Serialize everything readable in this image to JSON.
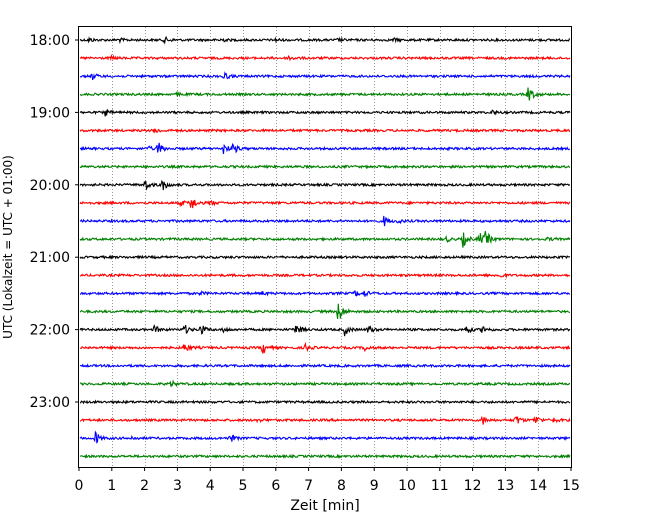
{
  "chart_data": {
    "type": "line",
    "title": "",
    "xlabel": "Zeit  [min]",
    "ylabel": "UTC (Lokalzeit = UTC + 01:00)",
    "xlim": [
      0,
      15
    ],
    "xticks": [
      "0",
      "1",
      "2",
      "3",
      "4",
      "5",
      "6",
      "7",
      "8",
      "9",
      "10",
      "11",
      "12",
      "13",
      "14",
      "15"
    ],
    "yticks": [
      {
        "label": "18:00",
        "trace_index": 0
      },
      {
        "label": "19:00",
        "trace_index": 4
      },
      {
        "label": "20:00",
        "trace_index": 8
      },
      {
        "label": "21:00",
        "trace_index": 12
      },
      {
        "label": "22:00",
        "trace_index": 16
      },
      {
        "label": "23:00",
        "trace_index": 20
      }
    ],
    "grid": "vertical dotted at each minute",
    "color_cycle": [
      "#000000",
      "#ff0000",
      "#0000ff",
      "#008000"
    ],
    "traces": [
      {
        "start": "18:00",
        "color": "#000000",
        "events": [
          [
            2.6,
            0.3
          ],
          [
            4.3,
            0.25
          ],
          [
            0.3,
            0.2
          ],
          [
            1.2,
            0.2
          ],
          [
            6.0,
            0.15
          ],
          [
            7.9,
            0.15
          ],
          [
            9.6,
            0.15
          ]
        ]
      },
      {
        "start": "18:15",
        "color": "#ff0000",
        "events": [
          [
            6.4,
            0.25
          ],
          [
            1.0,
            0.15
          ]
        ]
      },
      {
        "start": "18:30",
        "color": "#0000ff",
        "events": [
          [
            0.4,
            0.35
          ],
          [
            4.4,
            0.45
          ]
        ]
      },
      {
        "start": "18:45",
        "color": "#008000",
        "events": [
          [
            13.7,
            0.9
          ],
          [
            3.0,
            0.15
          ]
        ]
      },
      {
        "start": "19:00",
        "color": "#000000",
        "events": [
          [
            0.8,
            0.35
          ],
          [
            12.6,
            0.2
          ]
        ]
      },
      {
        "start": "19:15",
        "color": "#ff0000",
        "events": [
          [
            2.3,
            0.3
          ]
        ]
      },
      {
        "start": "19:30",
        "color": "#0000ff",
        "events": [
          [
            2.4,
            0.8
          ],
          [
            4.4,
            0.55
          ],
          [
            4.7,
            0.5
          ],
          [
            2.1,
            0.2
          ]
        ]
      },
      {
        "start": "19:45",
        "color": "#008000",
        "events": []
      },
      {
        "start": "20:00",
        "color": "#000000",
        "events": [
          [
            2.0,
            0.6
          ],
          [
            2.5,
            0.9
          ]
        ]
      },
      {
        "start": "20:15",
        "color": "#ff0000",
        "events": [
          [
            3.4,
            0.95
          ],
          [
            4.0,
            0.25
          ],
          [
            3.1,
            0.25
          ]
        ]
      },
      {
        "start": "20:30",
        "color": "#0000ff",
        "events": [
          [
            9.3,
            0.5
          ],
          [
            9.7,
            0.2
          ]
        ]
      },
      {
        "start": "20:45",
        "color": "#008000",
        "events": [
          [
            11.7,
            0.8
          ],
          [
            12.2,
            0.7
          ],
          [
            12.4,
            0.75
          ],
          [
            11.2,
            0.25
          ],
          [
            14.3,
            0.15
          ]
        ]
      },
      {
        "start": "21:00",
        "color": "#000000",
        "events": []
      },
      {
        "start": "21:15",
        "color": "#ff0000",
        "events": [
          [
            12.8,
            0.3
          ]
        ]
      },
      {
        "start": "21:30",
        "color": "#0000ff",
        "events": [
          [
            8.4,
            0.3
          ],
          [
            8.7,
            0.3
          ],
          [
            3.7,
            0.15
          ],
          [
            5.6,
            0.15
          ]
        ]
      },
      {
        "start": "21:45",
        "color": "#008000",
        "events": [
          [
            7.9,
            1.4
          ]
        ]
      },
      {
        "start": "22:00",
        "color": "#000000",
        "events": [
          [
            2.3,
            0.4
          ],
          [
            3.2,
            0.55
          ],
          [
            3.7,
            0.6
          ],
          [
            6.6,
            0.7
          ],
          [
            8.1,
            0.55
          ],
          [
            8.8,
            0.5
          ],
          [
            11.8,
            0.5
          ],
          [
            12.3,
            0.4
          ],
          [
            4.4,
            0.25
          ]
        ]
      },
      {
        "start": "22:15",
        "color": "#ff0000",
        "events": [
          [
            3.2,
            0.5
          ],
          [
            5.6,
            0.65
          ],
          [
            6.9,
            0.35
          ],
          [
            8.7,
            0.3
          ]
        ]
      },
      {
        "start": "22:30",
        "color": "#0000ff",
        "events": []
      },
      {
        "start": "22:45",
        "color": "#008000",
        "events": [
          [
            2.8,
            0.3
          ]
        ]
      },
      {
        "start": "23:00",
        "color": "#000000",
        "events": []
      },
      {
        "start": "23:15",
        "color": "#ff0000",
        "events": [
          [
            12.3,
            0.45
          ],
          [
            13.3,
            0.65
          ],
          [
            13.9,
            0.5
          ],
          [
            14.4,
            0.35
          ],
          [
            5.4,
            0.2
          ]
        ]
      },
      {
        "start": "23:30",
        "color": "#0000ff",
        "events": [
          [
            0.5,
            0.7
          ],
          [
            4.6,
            0.45
          ],
          [
            1.6,
            0.15
          ]
        ]
      },
      {
        "start": "23:45",
        "color": "#008000",
        "events": []
      }
    ]
  }
}
